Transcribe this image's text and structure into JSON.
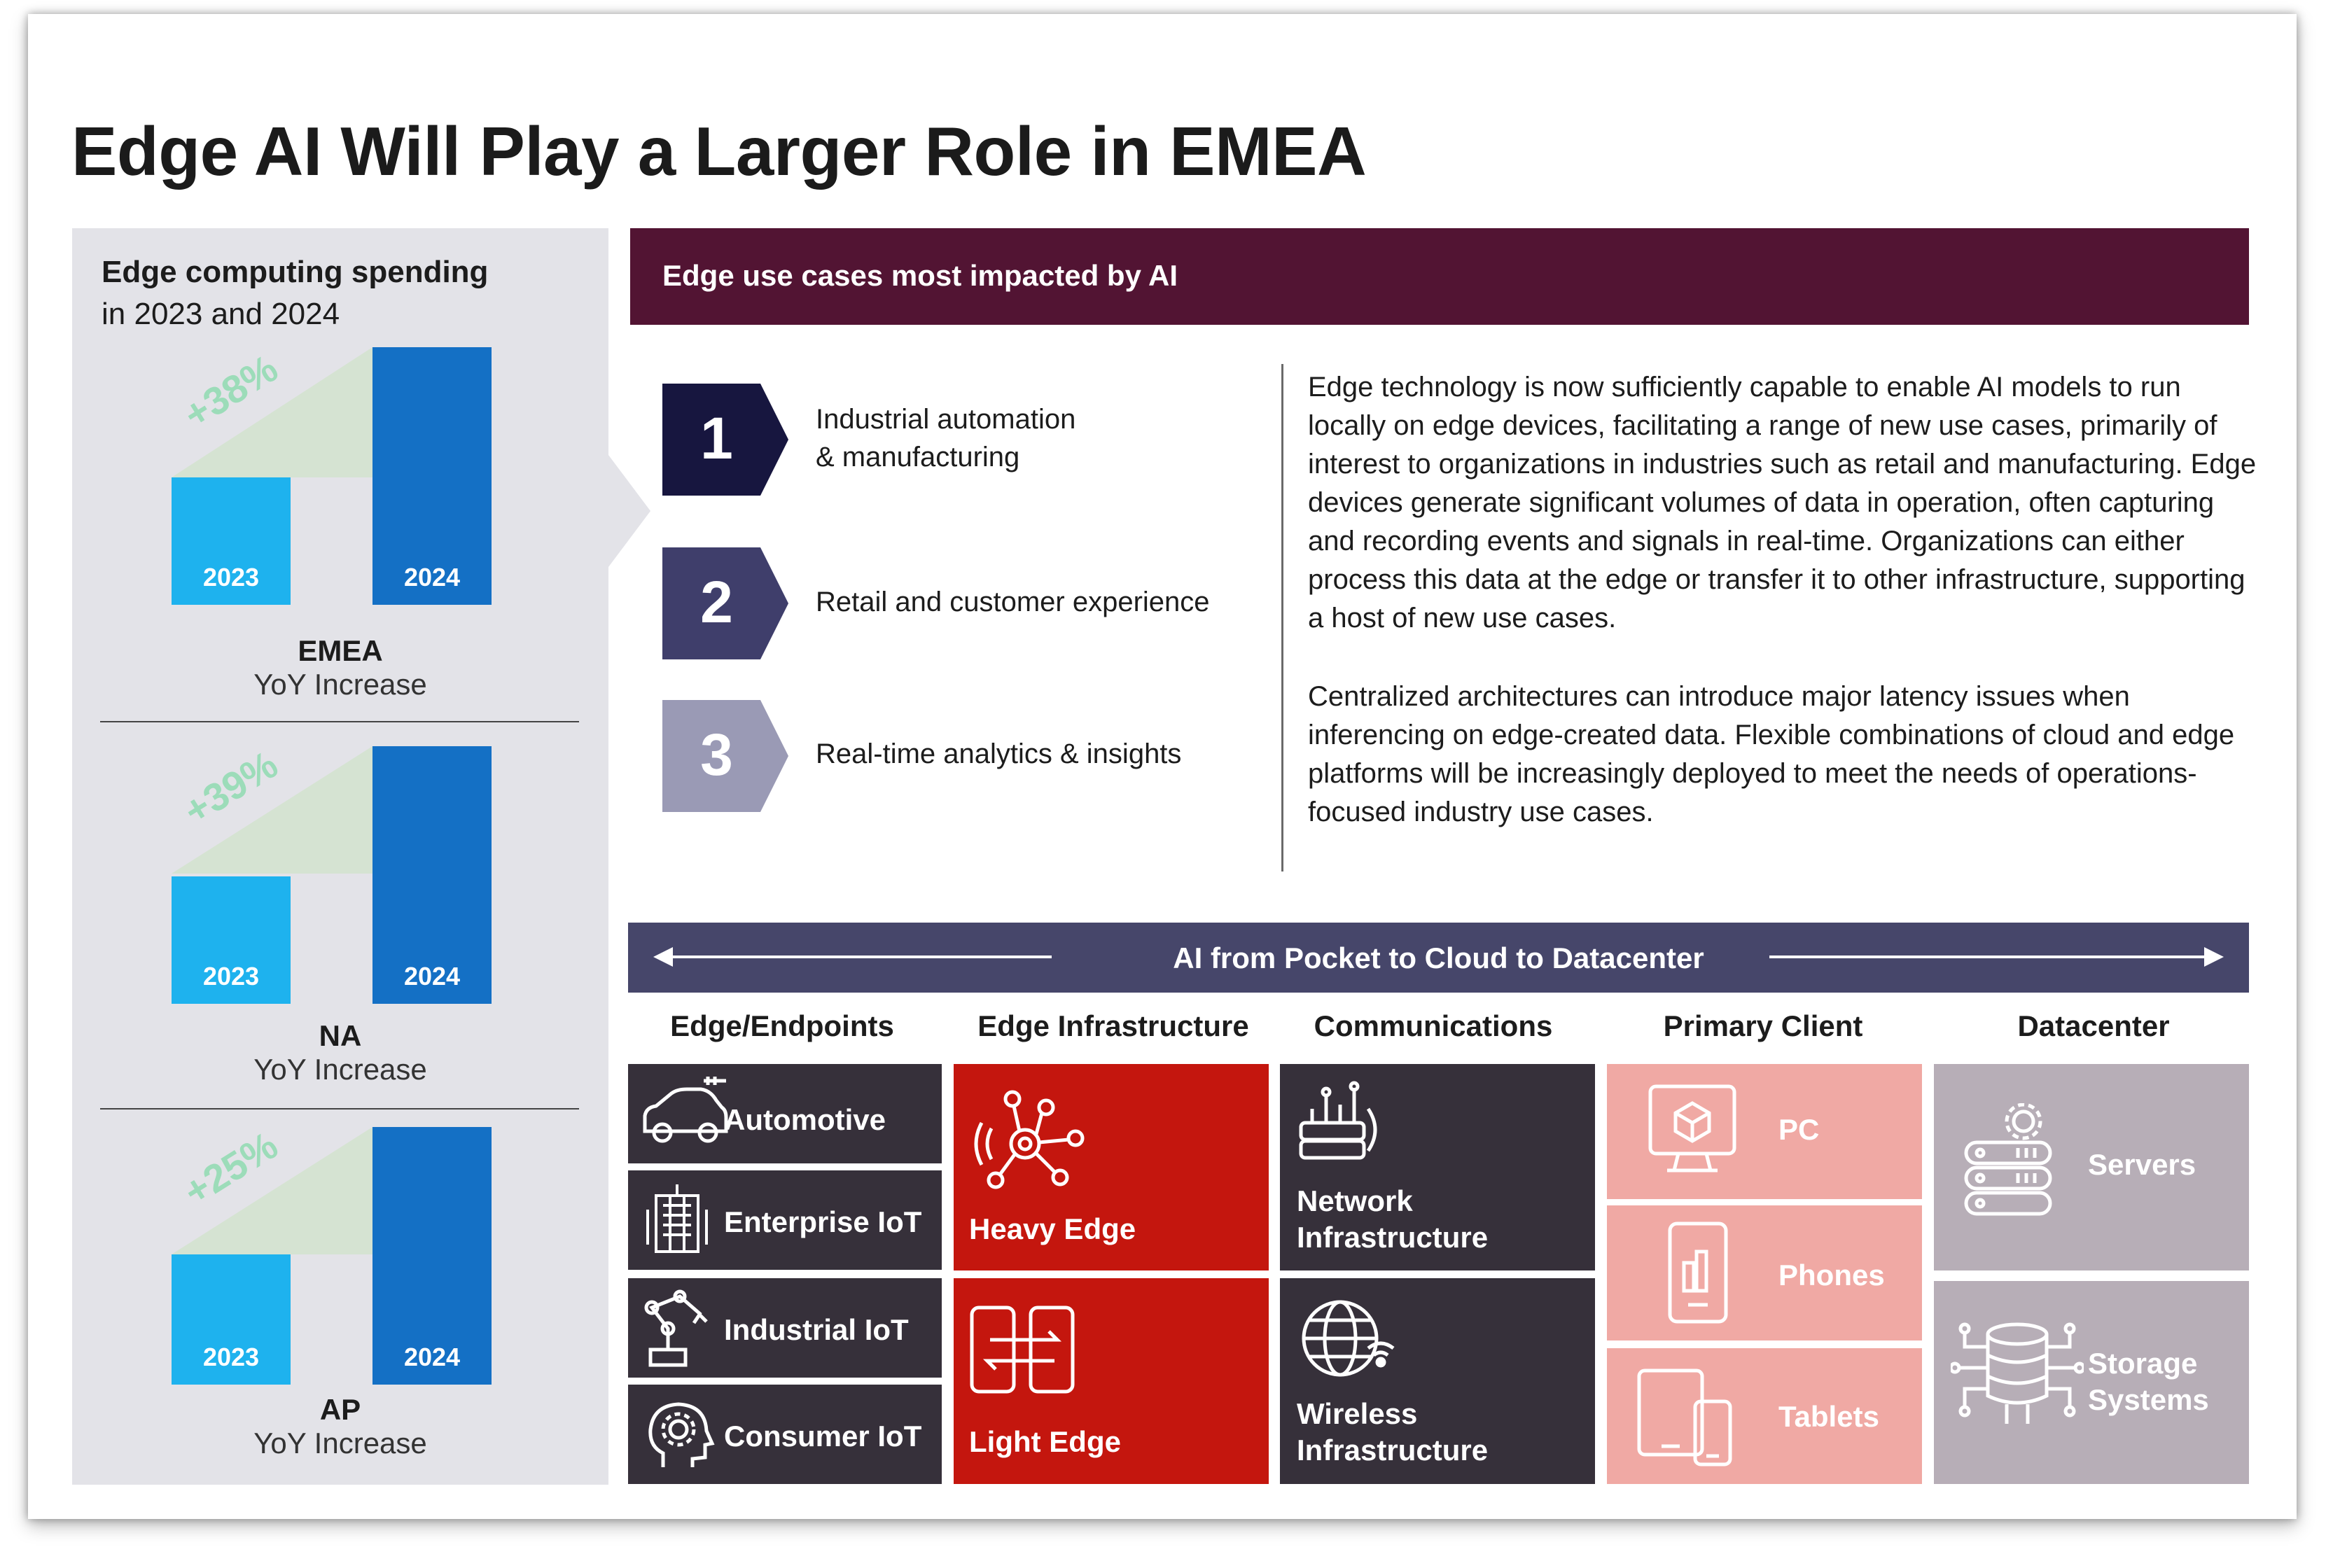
{
  "title": "Edge AI Will Play a Larger Role in EMEA",
  "spending": {
    "heading": "Edge computing spending",
    "subheading": "in 2023 and 2024",
    "regions": [
      {
        "name": "EMEA",
        "sub": "YoY Increase",
        "increase": "+38%",
        "bar1": "2023",
        "bar2": "2024",
        "value_2023": 1.0,
        "value_2024": 1.38
      },
      {
        "name": "NA",
        "sub": "YoY Increase",
        "increase": "+39%",
        "bar1": "2023",
        "bar2": "2024",
        "value_2023": 1.0,
        "value_2024": 1.39
      },
      {
        "name": "AP",
        "sub": "YoY Increase",
        "increase": "+25%",
        "bar1": "2023",
        "bar2": "2024",
        "value_2023": 1.0,
        "value_2024": 1.25
      }
    ]
  },
  "use_cases": {
    "heading": "Edge use cases most impacted by AI",
    "items": [
      {
        "num": "1",
        "label_line1": "Industrial automation",
        "label_line2": "& manufacturing",
        "color": "#17163f"
      },
      {
        "num": "2",
        "label_line1": "Retail and customer experience",
        "label_line2": "",
        "color": "#3f3e6b"
      },
      {
        "num": "3",
        "label_line1": "Real-time analytics & insights",
        "label_line2": "",
        "color": "#9a9ab5"
      }
    ],
    "paragraph1": "Edge technology is now sufficiently capable to enable AI models to run locally on edge devices, facilitating a range of new use cases, primarily of interest to organizations in industries such as retail and manufacturing. Edge devices generate significant volumes of data in operation, often capturing and recording events and signals in real-time. Organizations can either process this data at the edge or transfer it to other infrastructure, supporting a host of new use cases.",
    "paragraph2": "Centralized architectures can introduce major latency issues when inferencing on edge-created data. Flexible combinations of cloud and edge platforms will be increasingly deployed to meet the needs of operations-focused industry use cases."
  },
  "continuum": {
    "band": "AI from Pocket to Cloud to Datacenter",
    "columns": [
      {
        "head": "Edge/Endpoints",
        "tiles": [
          "Automotive",
          "Enterprise IoT",
          "Industrial IoT",
          "Consumer IoT"
        ]
      },
      {
        "head": "Edge Infrastructure",
        "tiles": [
          "Heavy Edge",
          "Light Edge"
        ]
      },
      {
        "head": "Communications",
        "tiles": [
          "Network Infrastructure",
          "Wireless Infrastructure"
        ]
      },
      {
        "head": "Primary Client",
        "tiles": [
          "PC",
          "Phones",
          "Tablets"
        ]
      },
      {
        "head": "Datacenter",
        "tiles": [
          "Servers",
          "Storage Systems"
        ]
      }
    ],
    "tile_lines": {
      "network": [
        "Network",
        "Infrastructure"
      ],
      "wireless": [
        "Wireless",
        "Infrastructure"
      ],
      "storage": [
        "Storage",
        "Systems"
      ]
    },
    "colors": {
      "dark": "#36303a",
      "red": "#c4160e",
      "pink": "#f0a9a4",
      "grey": "#b7aeb7",
      "band": "#46466a",
      "header": "#521433"
    }
  }
}
